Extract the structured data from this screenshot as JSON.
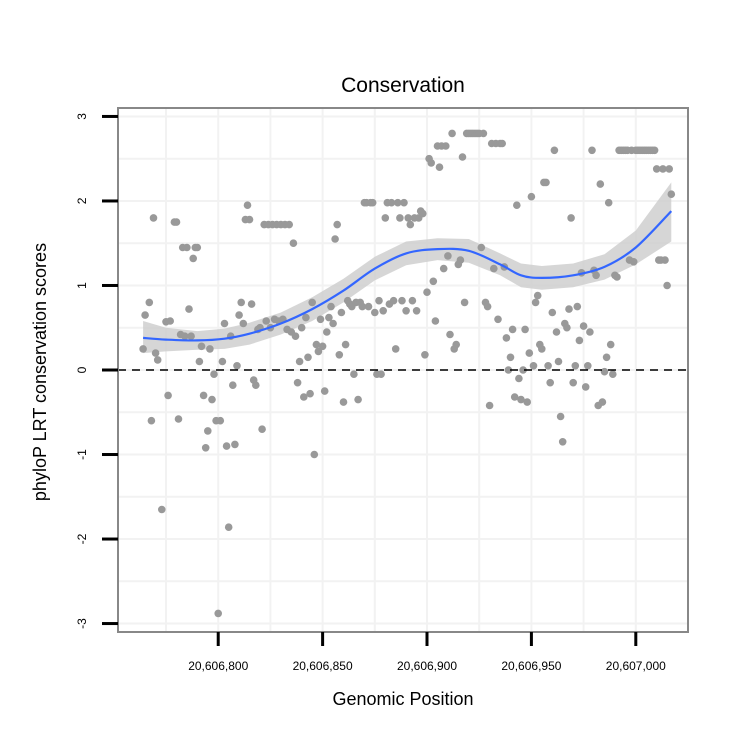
{
  "chart_data": {
    "type": "scatter",
    "title": "Conservation",
    "xlabel": "Genomic Position",
    "ylabel": "phyloP LRT conservation scores",
    "xlim": [
      20606752,
      20607025
    ],
    "ylim": [
      -3.1,
      3.1
    ],
    "x_ticks": [
      20606800,
      20606850,
      20606900,
      20606950,
      20607000
    ],
    "x_tick_labels": [
      "20,606,800",
      "20,606,850",
      "20,606,900",
      "20,606,950",
      "20,607,000"
    ],
    "y_ticks": [
      -3,
      -2,
      -1,
      0,
      1,
      2,
      3
    ],
    "y_tick_labels": [
      "-3",
      "-2",
      "-1",
      "0",
      "1",
      "2",
      "3"
    ],
    "reference_line": {
      "y": 0,
      "style": "dashed"
    },
    "grid": true,
    "colors": {
      "points": "#999999",
      "smooth_line": "#3366ff",
      "confidence_band": "#cccccc",
      "axis": "#888888"
    },
    "smooth": {
      "method": "loess",
      "x": [
        20606764,
        20606775,
        20606790,
        20606803,
        20606815,
        20606830,
        20606845,
        20606860,
        20606875,
        20606890,
        20606905,
        20606920,
        20606935,
        20606945,
        20606955,
        20606970,
        20606985,
        20607000,
        20607017
      ],
      "y": [
        0.38,
        0.36,
        0.35,
        0.37,
        0.43,
        0.55,
        0.72,
        0.94,
        1.2,
        1.38,
        1.43,
        1.41,
        1.25,
        1.12,
        1.09,
        1.12,
        1.22,
        1.45,
        1.88
      ],
      "lower": [
        0.2,
        0.22,
        0.24,
        0.25,
        0.3,
        0.42,
        0.58,
        0.8,
        1.06,
        1.24,
        1.3,
        1.27,
        1.12,
        0.98,
        0.95,
        0.98,
        1.07,
        1.25,
        1.52
      ],
      "upper": [
        0.58,
        0.5,
        0.46,
        0.49,
        0.56,
        0.68,
        0.86,
        1.08,
        1.34,
        1.52,
        1.56,
        1.55,
        1.38,
        1.26,
        1.23,
        1.26,
        1.37,
        1.65,
        2.22
      ]
    },
    "points": [
      {
        "x": 20606764,
        "y": 0.25
      },
      {
        "x": 20606765,
        "y": 0.65
      },
      {
        "x": 20606767,
        "y": 0.8
      },
      {
        "x": 20606768,
        "y": -0.6
      },
      {
        "x": 20606769,
        "y": 1.8
      },
      {
        "x": 20606770,
        "y": 0.2
      },
      {
        "x": 20606771,
        "y": 0.12
      },
      {
        "x": 20606773,
        "y": -1.65
      },
      {
        "x": 20606775,
        "y": 0.57
      },
      {
        "x": 20606776,
        "y": -0.3
      },
      {
        "x": 20606777,
        "y": 0.58
      },
      {
        "x": 20606779,
        "y": 1.75
      },
      {
        "x": 20606780,
        "y": 1.75
      },
      {
        "x": 20606781,
        "y": -0.58
      },
      {
        "x": 20606782,
        "y": 0.42
      },
      {
        "x": 20606783,
        "y": 1.45
      },
      {
        "x": 20606784,
        "y": 0.4
      },
      {
        "x": 20606785,
        "y": 1.45
      },
      {
        "x": 20606786,
        "y": 0.72
      },
      {
        "x": 20606787,
        "y": 0.4
      },
      {
        "x": 20606788,
        "y": 1.32
      },
      {
        "x": 20606789,
        "y": 1.45
      },
      {
        "x": 20606790,
        "y": 1.45
      },
      {
        "x": 20606791,
        "y": 0.1
      },
      {
        "x": 20606792,
        "y": 0.28
      },
      {
        "x": 20606793,
        "y": -0.3
      },
      {
        "x": 20606794,
        "y": -0.92
      },
      {
        "x": 20606795,
        "y": -0.72
      },
      {
        "x": 20606796,
        "y": 0.25
      },
      {
        "x": 20606797,
        "y": -0.35
      },
      {
        "x": 20606798,
        "y": -0.05
      },
      {
        "x": 20606799,
        "y": -0.6
      },
      {
        "x": 20606800,
        "y": -2.88
      },
      {
        "x": 20606801,
        "y": -0.6
      },
      {
        "x": 20606802,
        "y": 0.1
      },
      {
        "x": 20606803,
        "y": 0.55
      },
      {
        "x": 20606804,
        "y": -0.9
      },
      {
        "x": 20606805,
        "y": -1.86
      },
      {
        "x": 20606806,
        "y": 0.4
      },
      {
        "x": 20606807,
        "y": -0.18
      },
      {
        "x": 20606808,
        "y": -0.88
      },
      {
        "x": 20606809,
        "y": 0.05
      },
      {
        "x": 20606810,
        "y": 0.65
      },
      {
        "x": 20606811,
        "y": 0.8
      },
      {
        "x": 20606812,
        "y": 0.55
      },
      {
        "x": 20606813,
        "y": 1.78
      },
      {
        "x": 20606814,
        "y": 1.95
      },
      {
        "x": 20606815,
        "y": 1.78
      },
      {
        "x": 20606816,
        "y": 0.78
      },
      {
        "x": 20606817,
        "y": -0.12
      },
      {
        "x": 20606818,
        "y": -0.18
      },
      {
        "x": 20606819,
        "y": 0.48
      },
      {
        "x": 20606820,
        "y": 0.5
      },
      {
        "x": 20606821,
        "y": -0.7
      },
      {
        "x": 20606822,
        "y": 1.72
      },
      {
        "x": 20606823,
        "y": 0.58
      },
      {
        "x": 20606824,
        "y": 1.72
      },
      {
        "x": 20606825,
        "y": 0.5
      },
      {
        "x": 20606826,
        "y": 1.72
      },
      {
        "x": 20606827,
        "y": 0.6
      },
      {
        "x": 20606828,
        "y": 1.72
      },
      {
        "x": 20606829,
        "y": 0.58
      },
      {
        "x": 20606830,
        "y": 1.72
      },
      {
        "x": 20606831,
        "y": 0.6
      },
      {
        "x": 20606832,
        "y": 1.72
      },
      {
        "x": 20606833,
        "y": 0.48
      },
      {
        "x": 20606834,
        "y": 1.72
      },
      {
        "x": 20606835,
        "y": 0.45
      },
      {
        "x": 20606836,
        "y": 1.5
      },
      {
        "x": 20606837,
        "y": 0.4
      },
      {
        "x": 20606838,
        "y": -0.15
      },
      {
        "x": 20606839,
        "y": 0.1
      },
      {
        "x": 20606840,
        "y": 0.5
      },
      {
        "x": 20606841,
        "y": -0.32
      },
      {
        "x": 20606842,
        "y": 0.62
      },
      {
        "x": 20606843,
        "y": 0.15
      },
      {
        "x": 20606844,
        "y": -0.28
      },
      {
        "x": 20606845,
        "y": 0.8
      },
      {
        "x": 20606846,
        "y": -1.0
      },
      {
        "x": 20606847,
        "y": 0.3
      },
      {
        "x": 20606848,
        "y": 0.22
      },
      {
        "x": 20606849,
        "y": 0.6
      },
      {
        "x": 20606850,
        "y": 0.28
      },
      {
        "x": 20606851,
        "y": -0.25
      },
      {
        "x": 20606852,
        "y": 0.45
      },
      {
        "x": 20606853,
        "y": 0.62
      },
      {
        "x": 20606854,
        "y": 0.75
      },
      {
        "x": 20606855,
        "y": 0.55
      },
      {
        "x": 20606856,
        "y": 1.55
      },
      {
        "x": 20606857,
        "y": 1.72
      },
      {
        "x": 20606858,
        "y": 0.18
      },
      {
        "x": 20606859,
        "y": 0.68
      },
      {
        "x": 20606860,
        "y": -0.38
      },
      {
        "x": 20606861,
        "y": 0.3
      },
      {
        "x": 20606862,
        "y": 0.82
      },
      {
        "x": 20606863,
        "y": 0.78
      },
      {
        "x": 20606864,
        "y": 0.75
      },
      {
        "x": 20606865,
        "y": -0.05
      },
      {
        "x": 20606866,
        "y": 0.8
      },
      {
        "x": 20606867,
        "y": -0.35
      },
      {
        "x": 20606868,
        "y": 0.8
      },
      {
        "x": 20606869,
        "y": 0.75
      },
      {
        "x": 20606870,
        "y": 1.98
      },
      {
        "x": 20606871,
        "y": 1.98
      },
      {
        "x": 20606872,
        "y": 0.75
      },
      {
        "x": 20606873,
        "y": 1.98
      },
      {
        "x": 20606874,
        "y": 1.98
      },
      {
        "x": 20606875,
        "y": 0.68
      },
      {
        "x": 20606876,
        "y": -0.05
      },
      {
        "x": 20606877,
        "y": 0.82
      },
      {
        "x": 20606878,
        "y": -0.05
      },
      {
        "x": 20606879,
        "y": 0.7
      },
      {
        "x": 20606880,
        "y": 1.8
      },
      {
        "x": 20606881,
        "y": 1.98
      },
      {
        "x": 20606882,
        "y": 0.78
      },
      {
        "x": 20606883,
        "y": 1.98
      },
      {
        "x": 20606884,
        "y": 0.82
      },
      {
        "x": 20606885,
        "y": 0.25
      },
      {
        "x": 20606886,
        "y": 1.98
      },
      {
        "x": 20606887,
        "y": 1.8
      },
      {
        "x": 20606888,
        "y": 0.82
      },
      {
        "x": 20606889,
        "y": 1.98
      },
      {
        "x": 20606890,
        "y": 0.7
      },
      {
        "x": 20606891,
        "y": 1.8
      },
      {
        "x": 20606892,
        "y": 1.72
      },
      {
        "x": 20606893,
        "y": 0.82
      },
      {
        "x": 20606894,
        "y": 1.8
      },
      {
        "x": 20606895,
        "y": 0.7
      },
      {
        "x": 20606896,
        "y": 1.8
      },
      {
        "x": 20606897,
        "y": 1.88
      },
      {
        "x": 20606898,
        "y": 1.85
      },
      {
        "x": 20606899,
        "y": 0.18
      },
      {
        "x": 20606900,
        "y": 0.92
      },
      {
        "x": 20606901,
        "y": 2.5
      },
      {
        "x": 20606902,
        "y": 2.45
      },
      {
        "x": 20606903,
        "y": 1.05
      },
      {
        "x": 20606904,
        "y": 0.58
      },
      {
        "x": 20606905,
        "y": 2.65
      },
      {
        "x": 20606906,
        "y": 2.4
      },
      {
        "x": 20606907,
        "y": 2.65
      },
      {
        "x": 20606908,
        "y": 1.2
      },
      {
        "x": 20606909,
        "y": 2.65
      },
      {
        "x": 20606910,
        "y": 1.35
      },
      {
        "x": 20606911,
        "y": 0.42
      },
      {
        "x": 20606912,
        "y": 2.8
      },
      {
        "x": 20606913,
        "y": 0.25
      },
      {
        "x": 20606914,
        "y": 0.3
      },
      {
        "x": 20606915,
        "y": 1.25
      },
      {
        "x": 20606916,
        "y": 1.3
      },
      {
        "x": 20606917,
        "y": 2.52
      },
      {
        "x": 20606918,
        "y": 0.8
      },
      {
        "x": 20606919,
        "y": 2.8
      },
      {
        "x": 20606920,
        "y": 2.8
      },
      {
        "x": 20606921,
        "y": 2.8
      },
      {
        "x": 20606922,
        "y": 2.8
      },
      {
        "x": 20606923,
        "y": 2.8
      },
      {
        "x": 20606924,
        "y": 2.8
      },
      {
        "x": 20606925,
        "y": 2.8
      },
      {
        "x": 20606926,
        "y": 1.45
      },
      {
        "x": 20606927,
        "y": 2.8
      },
      {
        "x": 20606928,
        "y": 0.8
      },
      {
        "x": 20606929,
        "y": 0.75
      },
      {
        "x": 20606930,
        "y": -0.42
      },
      {
        "x": 20606931,
        "y": 2.68
      },
      {
        "x": 20606932,
        "y": 1.2
      },
      {
        "x": 20606933,
        "y": 2.68
      },
      {
        "x": 20606934,
        "y": 0.6
      },
      {
        "x": 20606935,
        "y": 2.68
      },
      {
        "x": 20606936,
        "y": 2.68
      },
      {
        "x": 20606937,
        "y": 1.22
      },
      {
        "x": 20606938,
        "y": 0.38
      },
      {
        "x": 20606939,
        "y": 0.0
      },
      {
        "x": 20606940,
        "y": 0.15
      },
      {
        "x": 20606941,
        "y": 0.48
      },
      {
        "x": 20606942,
        "y": -0.32
      },
      {
        "x": 20606943,
        "y": 1.95
      },
      {
        "x": 20606944,
        "y": -0.1
      },
      {
        "x": 20606945,
        "y": -0.35
      },
      {
        "x": 20606946,
        "y": 0.0
      },
      {
        "x": 20606947,
        "y": 0.48
      },
      {
        "x": 20606948,
        "y": -0.38
      },
      {
        "x": 20606949,
        "y": 0.2
      },
      {
        "x": 20606950,
        "y": 2.05
      },
      {
        "x": 20606951,
        "y": 0.05
      },
      {
        "x": 20606952,
        "y": 0.8
      },
      {
        "x": 20606953,
        "y": 0.88
      },
      {
        "x": 20606954,
        "y": 0.3
      },
      {
        "x": 20606955,
        "y": 0.25
      },
      {
        "x": 20606956,
        "y": 2.22
      },
      {
        "x": 20606957,
        "y": 2.22
      },
      {
        "x": 20606958,
        "y": 0.05
      },
      {
        "x": 20606959,
        "y": -0.15
      },
      {
        "x": 20606960,
        "y": 0.68
      },
      {
        "x": 20606961,
        "y": 2.6
      },
      {
        "x": 20606962,
        "y": 0.45
      },
      {
        "x": 20606963,
        "y": 0.1
      },
      {
        "x": 20606964,
        "y": -0.55
      },
      {
        "x": 20606965,
        "y": -0.85
      },
      {
        "x": 20606966,
        "y": 0.55
      },
      {
        "x": 20606967,
        "y": 0.5
      },
      {
        "x": 20606968,
        "y": 0.72
      },
      {
        "x": 20606969,
        "y": 1.8
      },
      {
        "x": 20606970,
        "y": -0.15
      },
      {
        "x": 20606971,
        "y": 0.05
      },
      {
        "x": 20606972,
        "y": 0.75
      },
      {
        "x": 20606973,
        "y": 0.35
      },
      {
        "x": 20606974,
        "y": 1.15
      },
      {
        "x": 20606975,
        "y": 0.52
      },
      {
        "x": 20606976,
        "y": -0.2
      },
      {
        "x": 20606977,
        "y": 0.05
      },
      {
        "x": 20606978,
        "y": 0.45
      },
      {
        "x": 20606979,
        "y": 2.6
      },
      {
        "x": 20606980,
        "y": 1.18
      },
      {
        "x": 20606981,
        "y": 1.12
      },
      {
        "x": 20606982,
        "y": -0.42
      },
      {
        "x": 20606983,
        "y": 2.2
      },
      {
        "x": 20606984,
        "y": -0.38
      },
      {
        "x": 20606985,
        "y": -0.02
      },
      {
        "x": 20606986,
        "y": 0.15
      },
      {
        "x": 20606987,
        "y": 1.98
      },
      {
        "x": 20606988,
        "y": 0.3
      },
      {
        "x": 20606989,
        "y": -0.05
      },
      {
        "x": 20606990,
        "y": 1.12
      },
      {
        "x": 20606991,
        "y": 1.1
      },
      {
        "x": 20606992,
        "y": 2.6
      },
      {
        "x": 20606993,
        "y": 2.6
      },
      {
        "x": 20606994,
        "y": 2.6
      },
      {
        "x": 20606995,
        "y": 2.6
      },
      {
        "x": 20606996,
        "y": 2.6
      },
      {
        "x": 20606997,
        "y": 1.3
      },
      {
        "x": 20606998,
        "y": 2.6
      },
      {
        "x": 20606999,
        "y": 1.28
      },
      {
        "x": 20607000,
        "y": 2.6
      },
      {
        "x": 20607001,
        "y": 2.6
      },
      {
        "x": 20607002,
        "y": 2.6
      },
      {
        "x": 20607003,
        "y": 2.6
      },
      {
        "x": 20607004,
        "y": 2.6
      },
      {
        "x": 20607005,
        "y": 2.6
      },
      {
        "x": 20607006,
        "y": 2.6
      },
      {
        "x": 20607007,
        "y": 2.6
      },
      {
        "x": 20607008,
        "y": 2.6
      },
      {
        "x": 20607009,
        "y": 2.6
      },
      {
        "x": 20607010,
        "y": 2.38
      },
      {
        "x": 20607011,
        "y": 1.3
      },
      {
        "x": 20607012,
        "y": 1.3
      },
      {
        "x": 20607013,
        "y": 2.38
      },
      {
        "x": 20607014,
        "y": 1.3
      },
      {
        "x": 20607015,
        "y": 1.0
      },
      {
        "x": 20607016,
        "y": 2.38
      },
      {
        "x": 20607017,
        "y": 2.08
      }
    ]
  }
}
